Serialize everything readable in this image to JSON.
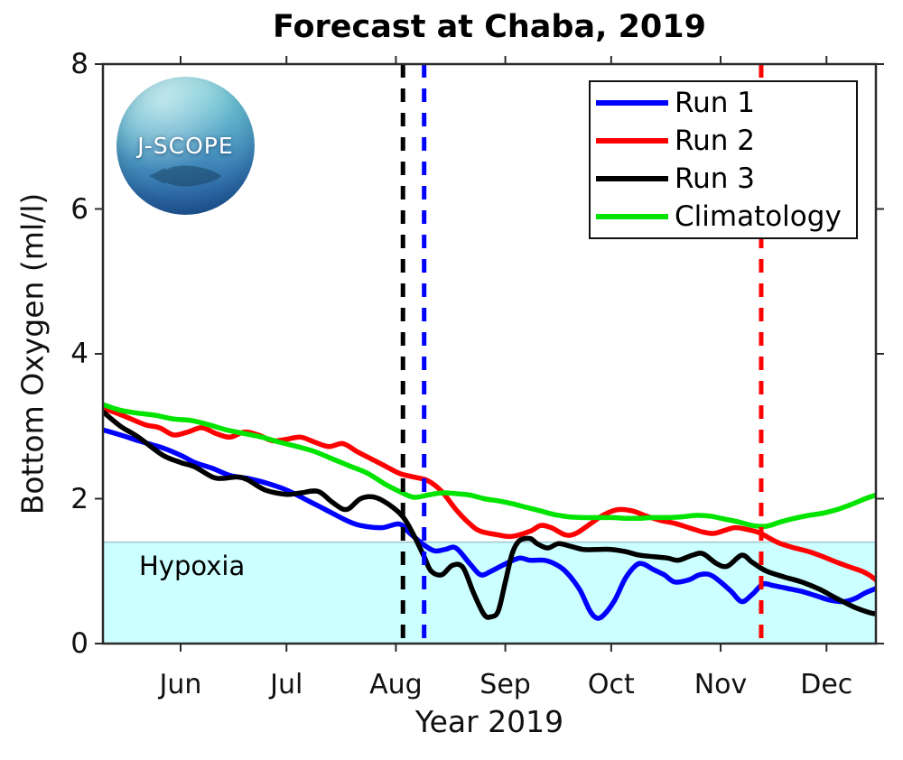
{
  "logo": {
    "text": "J-SCOPE"
  },
  "chart_data": {
    "type": "line",
    "title": "Forecast at Chaba, 2019",
    "xlabel": "Year 2019",
    "ylabel": "Bottom Oxygen (ml/l)",
    "ylim": [
      0,
      8
    ],
    "y_ticks": [
      0,
      2,
      4,
      6,
      8
    ],
    "x_tick_labels": [
      "Jun",
      "Jul",
      "Aug",
      "Sep",
      "Oct",
      "Nov",
      "Dec"
    ],
    "x_tick_days": [
      22,
      52,
      83,
      114,
      144,
      175,
      205
    ],
    "x_range_days": [
      0,
      219
    ],
    "grid": false,
    "legend_position": "top-right",
    "background": "#ffffff",
    "axis_color": "#2b2b2b",
    "hypoxia": {
      "label": "Hypoxia",
      "threshold": 1.4,
      "fill": "#ccffff",
      "edge": "#9fc6cb"
    },
    "dashed_lines": [
      {
        "name": "run3-init-line",
        "color": "#000000",
        "day": 85
      },
      {
        "name": "run1-init-line",
        "color": "#0000ff",
        "day": 91
      },
      {
        "name": "run2-init-line",
        "color": "#ff0000",
        "day": 186.5
      }
    ],
    "series": [
      {
        "name": "Run 1",
        "color": "#0000ff",
        "points": [
          [
            0,
            2.95
          ],
          [
            5,
            2.88
          ],
          [
            10,
            2.8
          ],
          [
            17,
            2.7
          ],
          [
            22,
            2.6
          ],
          [
            26,
            2.5
          ],
          [
            31,
            2.42
          ],
          [
            36,
            2.32
          ],
          [
            41,
            2.28
          ],
          [
            46,
            2.22
          ],
          [
            52,
            2.12
          ],
          [
            59,
            1.95
          ],
          [
            63,
            1.85
          ],
          [
            69,
            1.7
          ],
          [
            73,
            1.63
          ],
          [
            79,
            1.6
          ],
          [
            84,
            1.65
          ],
          [
            87,
            1.52
          ],
          [
            91,
            1.36
          ],
          [
            94,
            1.28
          ],
          [
            97,
            1.3
          ],
          [
            100,
            1.32
          ],
          [
            104,
            1.1
          ],
          [
            107,
            0.95
          ],
          [
            110,
            1.0
          ],
          [
            114,
            1.1
          ],
          [
            118,
            1.18
          ],
          [
            121,
            1.15
          ],
          [
            125,
            1.15
          ],
          [
            128,
            1.1
          ],
          [
            131,
            1.0
          ],
          [
            135,
            0.75
          ],
          [
            138,
            0.45
          ],
          [
            140,
            0.35
          ],
          [
            142,
            0.4
          ],
          [
            145,
            0.6
          ],
          [
            148,
            0.9
          ],
          [
            151,
            1.08
          ],
          [
            153,
            1.1
          ],
          [
            156,
            1.02
          ],
          [
            159,
            0.95
          ],
          [
            162,
            0.85
          ],
          [
            166,
            0.88
          ],
          [
            169,
            0.95
          ],
          [
            172,
            0.95
          ],
          [
            175,
            0.85
          ],
          [
            178,
            0.72
          ],
          [
            181,
            0.58
          ],
          [
            184,
            0.68
          ],
          [
            187,
            0.82
          ],
          [
            190,
            0.8
          ],
          [
            194,
            0.76
          ],
          [
            198,
            0.72
          ],
          [
            202,
            0.66
          ],
          [
            206,
            0.6
          ],
          [
            210,
            0.58
          ],
          [
            213,
            0.62
          ],
          [
            216,
            0.7
          ],
          [
            219,
            0.76
          ]
        ]
      },
      {
        "name": "Run 2",
        "color": "#ff0000",
        "points": [
          [
            0,
            3.25
          ],
          [
            4,
            3.18
          ],
          [
            8,
            3.1
          ],
          [
            12,
            3.02
          ],
          [
            16,
            2.98
          ],
          [
            20,
            2.88
          ],
          [
            24,
            2.92
          ],
          [
            28,
            2.98
          ],
          [
            32,
            2.9
          ],
          [
            36,
            2.85
          ],
          [
            40,
            2.92
          ],
          [
            44,
            2.88
          ],
          [
            48,
            2.8
          ],
          [
            52,
            2.82
          ],
          [
            56,
            2.85
          ],
          [
            60,
            2.78
          ],
          [
            64,
            2.72
          ],
          [
            68,
            2.76
          ],
          [
            72,
            2.65
          ],
          [
            76,
            2.55
          ],
          [
            80,
            2.45
          ],
          [
            84,
            2.35
          ],
          [
            88,
            2.3
          ],
          [
            92,
            2.25
          ],
          [
            96,
            2.1
          ],
          [
            100,
            1.85
          ],
          [
            104,
            1.65
          ],
          [
            107,
            1.55
          ],
          [
            112,
            1.5
          ],
          [
            116,
            1.48
          ],
          [
            121,
            1.55
          ],
          [
            124,
            1.63
          ],
          [
            127,
            1.6
          ],
          [
            131,
            1.5
          ],
          [
            134,
            1.52
          ],
          [
            138,
            1.65
          ],
          [
            142,
            1.78
          ],
          [
            146,
            1.85
          ],
          [
            150,
            1.83
          ],
          [
            154,
            1.76
          ],
          [
            158,
            1.7
          ],
          [
            162,
            1.66
          ],
          [
            166,
            1.6
          ],
          [
            170,
            1.54
          ],
          [
            173,
            1.52
          ],
          [
            176,
            1.56
          ],
          [
            179,
            1.6
          ],
          [
            182,
            1.58
          ],
          [
            186,
            1.53
          ],
          [
            189,
            1.45
          ],
          [
            192,
            1.38
          ],
          [
            196,
            1.32
          ],
          [
            200,
            1.27
          ],
          [
            204,
            1.2
          ],
          [
            208,
            1.12
          ],
          [
            212,
            1.05
          ],
          [
            215,
            1.0
          ],
          [
            217,
            0.95
          ],
          [
            219,
            0.88
          ]
        ]
      },
      {
        "name": "Run 3",
        "color": "#000000",
        "points": [
          [
            0,
            3.2
          ],
          [
            5,
            3.0
          ],
          [
            10,
            2.85
          ],
          [
            17,
            2.6
          ],
          [
            22,
            2.5
          ],
          [
            26,
            2.44
          ],
          [
            31,
            2.3
          ],
          [
            34,
            2.28
          ],
          [
            38,
            2.3
          ],
          [
            41,
            2.26
          ],
          [
            46,
            2.12
          ],
          [
            52,
            2.06
          ],
          [
            56,
            2.08
          ],
          [
            61,
            2.1
          ],
          [
            65,
            1.95
          ],
          [
            69,
            1.85
          ],
          [
            73,
            2.0
          ],
          [
            77,
            2.02
          ],
          [
            81,
            1.92
          ],
          [
            85,
            1.75
          ],
          [
            88,
            1.5
          ],
          [
            91,
            1.2
          ],
          [
            93,
            1.0
          ],
          [
            96,
            0.95
          ],
          [
            99,
            1.08
          ],
          [
            102,
            1.05
          ],
          [
            105,
            0.7
          ],
          [
            108,
            0.4
          ],
          [
            110,
            0.37
          ],
          [
            112,
            0.45
          ],
          [
            114,
            0.85
          ],
          [
            116,
            1.25
          ],
          [
            118,
            1.42
          ],
          [
            121,
            1.45
          ],
          [
            123,
            1.38
          ],
          [
            126,
            1.32
          ],
          [
            129,
            1.38
          ],
          [
            132,
            1.35
          ],
          [
            136,
            1.3
          ],
          [
            140,
            1.3
          ],
          [
            144,
            1.3
          ],
          [
            148,
            1.27
          ],
          [
            152,
            1.22
          ],
          [
            156,
            1.2
          ],
          [
            160,
            1.18
          ],
          [
            163,
            1.15
          ],
          [
            167,
            1.22
          ],
          [
            170,
            1.24
          ],
          [
            174,
            1.1
          ],
          [
            177,
            1.07
          ],
          [
            181,
            1.22
          ],
          [
            184,
            1.12
          ],
          [
            188,
            1.0
          ],
          [
            193,
            0.92
          ],
          [
            198,
            0.85
          ],
          [
            203,
            0.75
          ],
          [
            208,
            0.62
          ],
          [
            213,
            0.5
          ],
          [
            217,
            0.43
          ],
          [
            219,
            0.41
          ]
        ]
      },
      {
        "name": "Climatology",
        "color": "#00e400",
        "points": [
          [
            0,
            3.3
          ],
          [
            5,
            3.22
          ],
          [
            10,
            3.18
          ],
          [
            15,
            3.15
          ],
          [
            20,
            3.1
          ],
          [
            25,
            3.08
          ],
          [
            30,
            3.02
          ],
          [
            35,
            2.95
          ],
          [
            40,
            2.9
          ],
          [
            45,
            2.85
          ],
          [
            50,
            2.78
          ],
          [
            55,
            2.72
          ],
          [
            60,
            2.65
          ],
          [
            65,
            2.55
          ],
          [
            70,
            2.45
          ],
          [
            75,
            2.35
          ],
          [
            80,
            2.2
          ],
          [
            84,
            2.1
          ],
          [
            88,
            2.02
          ],
          [
            92,
            2.05
          ],
          [
            96,
            2.08
          ],
          [
            100,
            2.07
          ],
          [
            104,
            2.05
          ],
          [
            108,
            2.0
          ],
          [
            112,
            1.97
          ],
          [
            116,
            1.93
          ],
          [
            120,
            1.88
          ],
          [
            124,
            1.83
          ],
          [
            128,
            1.78
          ],
          [
            132,
            1.75
          ],
          [
            136,
            1.74
          ],
          [
            140,
            1.74
          ],
          [
            144,
            1.74
          ],
          [
            148,
            1.73
          ],
          [
            152,
            1.73
          ],
          [
            156,
            1.74
          ],
          [
            160,
            1.74
          ],
          [
            164,
            1.75
          ],
          [
            168,
            1.77
          ],
          [
            172,
            1.76
          ],
          [
            176,
            1.72
          ],
          [
            180,
            1.68
          ],
          [
            184,
            1.63
          ],
          [
            188,
            1.62
          ],
          [
            192,
            1.68
          ],
          [
            196,
            1.73
          ],
          [
            200,
            1.77
          ],
          [
            204,
            1.8
          ],
          [
            208,
            1.85
          ],
          [
            212,
            1.92
          ],
          [
            216,
            2.0
          ],
          [
            219,
            2.05
          ]
        ]
      }
    ]
  }
}
